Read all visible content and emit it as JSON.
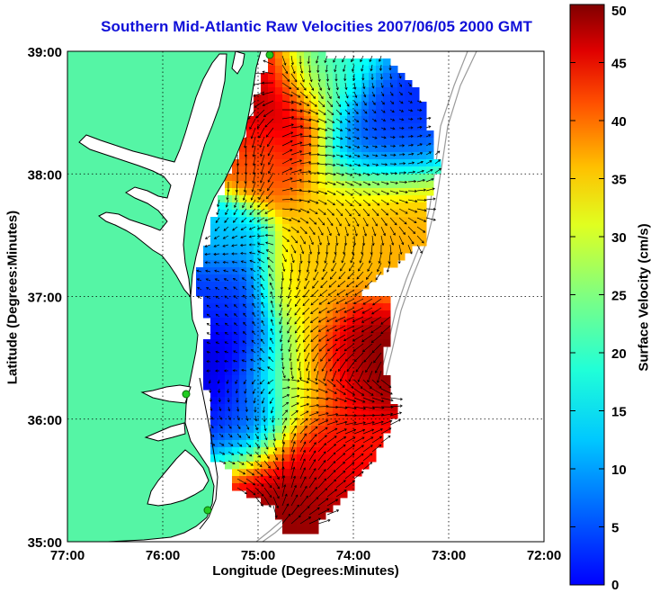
{
  "title": "Southern Mid-Atlantic Raw Velocities 2007/06/05 2000 GMT",
  "chart_data": {
    "type": "heatmap",
    "title": "Southern Mid-Atlantic Raw Velocities 2007/06/05 2000 GMT",
    "xlabel": "Longitude (Degrees:Minutes)",
    "ylabel": "Latitude (Degrees:Minutes)",
    "x_ticks": [
      "77:00",
      "76:00",
      "75:00",
      "74:00",
      "73:00",
      "72:00"
    ],
    "y_ticks": [
      "39:00",
      "38:00",
      "37:00",
      "36:00",
      "35:00"
    ],
    "xlim": [
      -77,
      -72
    ],
    "ylim": [
      35,
      39
    ],
    "grid": true,
    "colorbar": {
      "label": "Surface Velocity (cm/s)",
      "range": [
        0,
        50
      ],
      "ticks": [
        "0",
        "5",
        "10",
        "15",
        "20",
        "25",
        "30",
        "35",
        "40",
        "45",
        "50"
      ],
      "colormap": "jet"
    }
  },
  "colors": {
    "title": "#1010d8",
    "land": "#55f5a5",
    "coast": "#000000",
    "bathymetry": "#9a9a9a",
    "vectors": "#000000",
    "station": "#22cc22"
  }
}
